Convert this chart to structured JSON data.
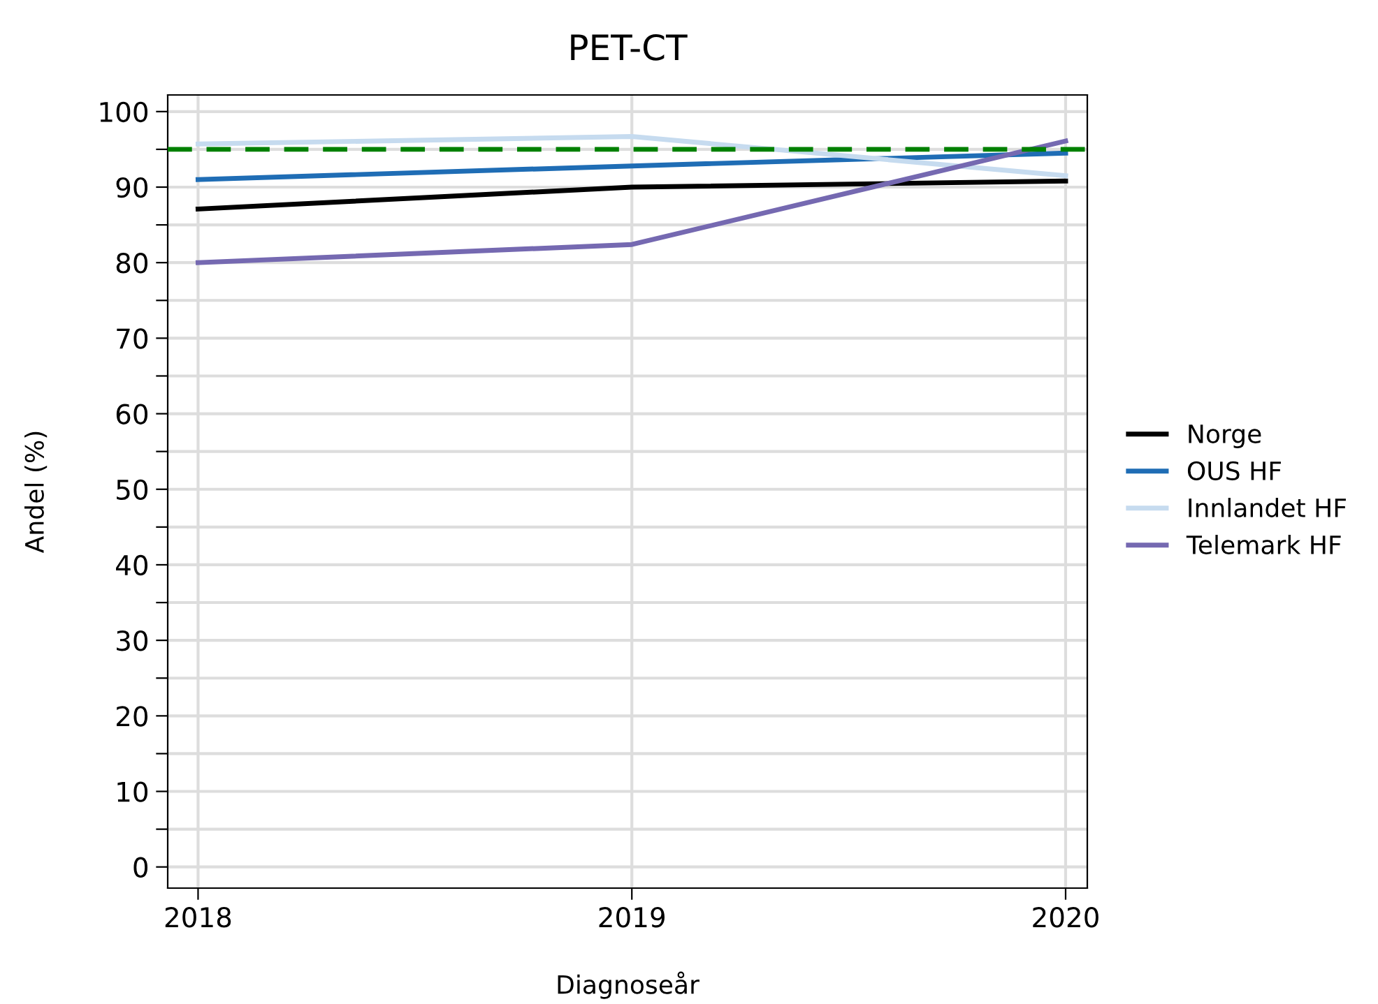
{
  "chart_data": {
    "type": "line",
    "title": "PET-CT",
    "xlabel": "Diagnoseår",
    "ylabel": "Andel (%)",
    "x": [
      2018,
      2019,
      2020
    ],
    "series": [
      {
        "name": "Norge",
        "color": "#000000",
        "values": [
          87.1,
          90.0,
          90.8
        ]
      },
      {
        "name": "OUS HF",
        "color": "#1f6db5",
        "values": [
          91.0,
          92.8,
          94.5
        ]
      },
      {
        "name": "Innlandet HF",
        "color": "#c6dbef",
        "values": [
          95.7,
          96.7,
          91.5
        ]
      },
      {
        "name": "Telemark HF",
        "color": "#7569b1",
        "values": [
          80.0,
          82.4,
          96.1
        ]
      }
    ],
    "xlim": [
      2017.93,
      2020.05
    ],
    "xticks": [
      2018,
      2019,
      2020
    ],
    "ylim": [
      -2.8,
      102.2
    ],
    "yticks": [
      0,
      {
        "value": 5,
        "label": null
      },
      10,
      {
        "value": 15,
        "label": null
      },
      20,
      {
        "value": 25,
        "label": null
      },
      30,
      {
        "value": 35,
        "label": null
      },
      40,
      {
        "value": 45,
        "label": null
      },
      50,
      {
        "value": 55,
        "label": null
      },
      60,
      {
        "value": 65,
        "label": null
      },
      70,
      {
        "value": 75,
        "label": null
      },
      80,
      {
        "value": 85,
        "label": null
      },
      90,
      {
        "value": 95,
        "label": null
      },
      100
    ],
    "ref_lines": [
      {
        "axis": "y",
        "value": 95,
        "color": "#008000",
        "line_style": "dashed"
      }
    ],
    "grid": true,
    "legend": "right",
    "line_style": "solid",
    "marker": "none"
  }
}
